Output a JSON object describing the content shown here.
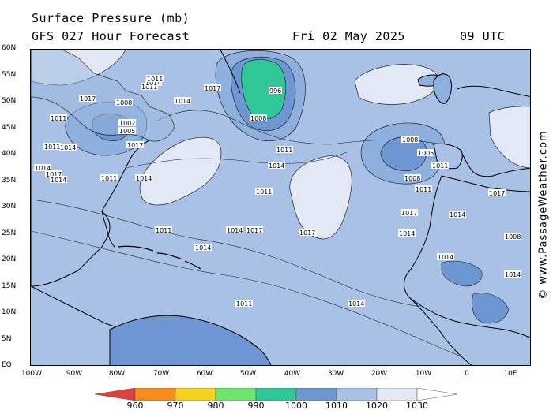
{
  "header": {
    "title": "Surface Pressure (mb)",
    "subtitle": "GFS 027 Hour Forecast",
    "date": "Fri 02 May 2025",
    "time": "09 UTC"
  },
  "watermark": "© www.PassageWeather.com",
  "axes": {
    "lat_labels": [
      "60N",
      "55N",
      "50N",
      "45N",
      "40N",
      "35N",
      "30N",
      "25N",
      "20N",
      "15N",
      "10N",
      "5N",
      "EQ"
    ],
    "lon_labels": [
      "100W",
      "90W",
      "80W",
      "70W",
      "60W",
      "50W",
      "40W",
      "30W",
      "20W",
      "10W",
      "0",
      "10E"
    ]
  },
  "legend": {
    "colors": [
      "#e0403c",
      "#f58c1c",
      "#f5d21c",
      "#6ee66e",
      "#30c896",
      "#6e96d2",
      "#a9c1e5",
      "#e3e9f4",
      "#ffffff"
    ],
    "ticks": [
      "960",
      "970",
      "980",
      "990",
      "1000",
      "1010",
      "1020",
      "1030"
    ]
  },
  "map": {
    "ocean_color": "#a9c1e5",
    "isobar_labels": [
      {
        "text": "996",
        "kind": "low"
      },
      {
        "text": "1008",
        "kind": "low"
      },
      {
        "text": "1002",
        "kind": "low"
      },
      {
        "text": "1005",
        "kind": "low"
      },
      {
        "text": "1011",
        "kind": "iso"
      },
      {
        "text": "1014",
        "kind": "iso"
      },
      {
        "text": "1017",
        "kind": "iso"
      },
      {
        "text": "1008",
        "kind": "iso"
      },
      {
        "text": "1011",
        "kind": "iso"
      },
      {
        "text": "1014",
        "kind": "iso"
      },
      {
        "text": "1017",
        "kind": "iso"
      },
      {
        "text": "1011",
        "kind": "iso"
      },
      {
        "text": "1014",
        "kind": "iso"
      },
      {
        "text": "1017",
        "kind": "iso"
      },
      {
        "text": "1014",
        "kind": "iso"
      },
      {
        "text": "1011",
        "kind": "iso"
      },
      {
        "text": "1014",
        "kind": "iso"
      },
      {
        "text": "1011",
        "kind": "iso"
      },
      {
        "text": "1017",
        "kind": "iso"
      },
      {
        "text": "1014",
        "kind": "iso"
      },
      {
        "text": "1011",
        "kind": "iso"
      },
      {
        "text": "1014",
        "kind": "iso"
      },
      {
        "text": "1011",
        "kind": "iso"
      },
      {
        "text": "1017",
        "kind": "iso"
      },
      {
        "text": "1014",
        "kind": "iso"
      },
      {
        "text": "1017",
        "kind": "iso"
      },
      {
        "text": "1014",
        "kind": "iso"
      },
      {
        "text": "1011",
        "kind": "iso"
      },
      {
        "text": "1014",
        "kind": "iso"
      },
      {
        "text": "1011",
        "kind": "iso"
      },
      {
        "text": "1008",
        "kind": "iso"
      },
      {
        "text": "1005",
        "kind": "iso"
      },
      {
        "text": "1008",
        "kind": "iso"
      },
      {
        "text": "1011",
        "kind": "iso"
      },
      {
        "text": "1014",
        "kind": "iso"
      },
      {
        "text": "1017",
        "kind": "iso"
      },
      {
        "text": "1014",
        "kind": "iso"
      },
      {
        "text": "1011",
        "kind": "iso"
      },
      {
        "text": "1014",
        "kind": "iso"
      },
      {
        "text": "1017",
        "kind": "iso"
      },
      {
        "text": "1014",
        "kind": "iso"
      },
      {
        "text": "1008",
        "kind": "iso"
      }
    ]
  }
}
